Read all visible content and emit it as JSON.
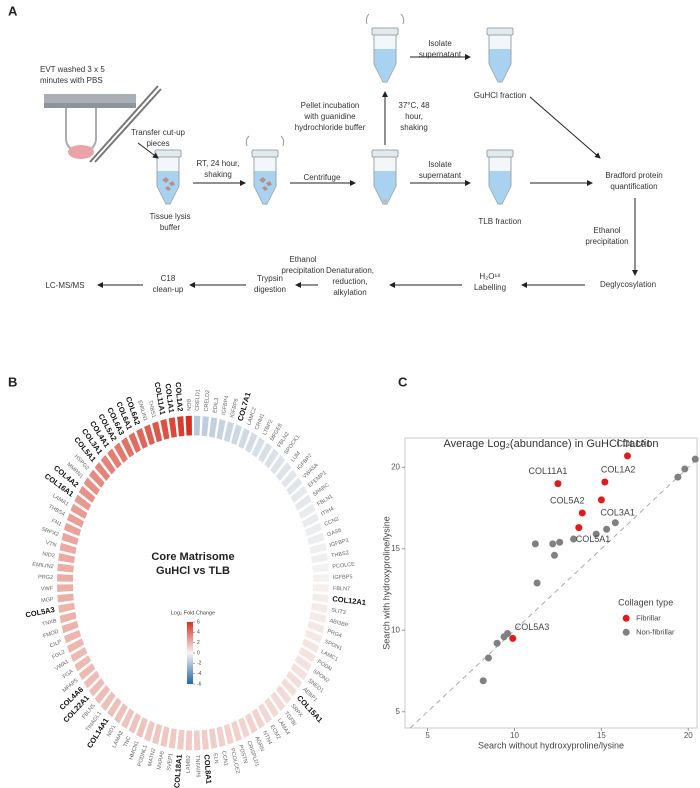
{
  "diagram": {
    "label": "A",
    "steps": [
      {
        "lines": [
          "EVT washed 3 x 5",
          "minutes with PBS"
        ]
      },
      {
        "lines": [
          "Transfer cut-up",
          "pieces"
        ]
      },
      {
        "lines": [
          "Tissue lysis",
          "buffer"
        ]
      },
      {
        "lines": [
          "RT, 24 hour,",
          "shaking"
        ]
      },
      {
        "lines": [
          "Centrifuge"
        ]
      },
      {
        "lines": [
          "Pellet incubation",
          "with guanidine",
          "hydrochloride buffer"
        ]
      },
      {
        "lines": [
          "37°C, 48",
          "hour,",
          "shaking"
        ]
      },
      {
        "lines": [
          "Isolate",
          "supernatant"
        ]
      },
      {
        "lines": [
          "GuHCl fraction"
        ]
      },
      {
        "lines": [
          "Isolate",
          "supernatant"
        ]
      },
      {
        "lines": [
          "TLB fraction"
        ]
      },
      {
        "lines": [
          "Bradford protein",
          "quantification"
        ]
      },
      {
        "lines": [
          "Ethanol",
          "precipitation"
        ]
      },
      {
        "lines": [
          "Deglycosylation"
        ]
      },
      {
        "lines": [
          "H₂O¹⁸",
          "Labelling"
        ]
      },
      {
        "lines": [
          "Denaturation,",
          "reduction,",
          "alkylation"
        ]
      },
      {
        "lines": [
          "Ethanol",
          "precipitation"
        ]
      },
      {
        "lines": [
          "Trypsin",
          "digestion"
        ]
      },
      {
        "lines": [
          "C18",
          "clean-up"
        ]
      },
      {
        "lines": [
          "LC-MS/MS"
        ]
      }
    ]
  },
  "chart_data": [
    {
      "type": "radial_bar",
      "panel": "B",
      "title": "Core Matrisome",
      "subtitle": "GuHCl vs TLB",
      "categories": [
        "CRELD1",
        "CRELD2",
        "EDIL3",
        "IGFBP4",
        "IGFBP6",
        "COL7A1",
        "LAMC2",
        "CRIM1",
        "LTBP2",
        "MFGE8",
        "FBLN2",
        "SPOCK1",
        "LUM",
        "IGFBP7",
        "VWA5A",
        "EFEMP1",
        "SPARC",
        "FBLN1",
        "ITIH4",
        "CCN2",
        "GAS6",
        "IGFBP3",
        "THBS2",
        "PCOLCE",
        "IGFBP5",
        "FBLN7",
        "COL12A1",
        "SLIT3",
        "ABI3BP",
        "PRG4",
        "SPON1",
        "LAMC1",
        "PODN",
        "SPON2",
        "SNED1",
        "AEBP1",
        "COL15A1",
        "SRPX",
        "TGFBI",
        "LAMA4",
        "ECM2",
        "NTN4",
        "AGRN",
        "CRISPLD1",
        "POSTN",
        "PCOLCE2",
        "CCN1",
        "ELN",
        "COL8A1",
        "TNFAIP6",
        "LAMB2",
        "COL18A1",
        "SVEP1",
        "MXRA5",
        "MATN2",
        "PODNL1",
        "HMCN1",
        "TNC",
        "LAMA2",
        "NID1",
        "COL14A1",
        "TINAGL1",
        "FBLN5",
        "COL22A1",
        "COL4A6",
        "MFAP5",
        "FGA",
        "VWA1",
        "FGL2",
        "CILP",
        "FMOD",
        "TNXB",
        "COL5A3",
        "MGP",
        "VWF",
        "PRG2",
        "EMILIN2",
        "NID2",
        "VTN",
        "SRPX2",
        "FN1",
        "THBS4",
        "LAMA1",
        "COL16A1",
        "COL4A2",
        "MMRN1",
        "HSPG2",
        "COL5A1",
        "COL3A1",
        "COL4A1",
        "COL5A2",
        "COL6A3",
        "COL6A1",
        "COL6A2",
        "EMILIN1",
        "THBS1",
        "COL11A1",
        "COL1A1",
        "COL1A2",
        "BGN"
      ],
      "values": [
        -1.8,
        -1.6,
        -1.5,
        -1.4,
        -1.3,
        -1.2,
        -1.1,
        -1.0,
        -0.9,
        -0.9,
        -0.8,
        -0.7,
        -0.7,
        -0.6,
        -0.6,
        -0.5,
        -0.5,
        -0.4,
        -0.4,
        -0.3,
        -0.3,
        -0.2,
        -0.2,
        -0.1,
        -0.1,
        0.1,
        0.2,
        0.3,
        0.3,
        0.4,
        0.4,
        0.5,
        0.5,
        0.6,
        0.6,
        0.7,
        0.7,
        0.8,
        0.8,
        0.9,
        0.9,
        1.0,
        1.0,
        1.0,
        1.1,
        1.1,
        1.1,
        1.2,
        1.2,
        1.2,
        1.3,
        1.3,
        1.3,
        1.4,
        1.4,
        1.4,
        1.5,
        1.5,
        1.5,
        1.6,
        1.6,
        1.6,
        1.7,
        1.7,
        1.7,
        1.8,
        1.8,
        1.8,
        1.9,
        1.9,
        2.0,
        2.0,
        2.0,
        2.1,
        2.1,
        2.2,
        2.2,
        2.3,
        2.3,
        2.4,
        2.5,
        2.6,
        2.7,
        2.8,
        3.0,
        3.1,
        3.2,
        3.4,
        3.5,
        3.6,
        3.8,
        4.0,
        4.2,
        4.4,
        4.6,
        4.8,
        5.0,
        5.3,
        5.6,
        6.0
      ],
      "colorbar": {
        "title": "Log₂ Fold Change",
        "lim": [
          -6,
          6
        ],
        "ticks": [
          6,
          4,
          2,
          0,
          -2,
          -4,
          -6
        ],
        "colors": [
          "#2166ac",
          "#f7f4f2",
          "#d7301f"
        ]
      }
    },
    {
      "type": "scatter",
      "panel": "C",
      "title": "Average Log₂(abundance) in GuHCl fraction",
      "xlabel": "Search without hydroxyproline/lysine",
      "ylabel": "Search with hydroxyproline/lysine",
      "xlim": [
        3.7,
        20.5
      ],
      "ylim": [
        4,
        21.8
      ],
      "xticks": [
        5,
        10,
        15,
        20
      ],
      "yticks": [
        5,
        10,
        15,
        20
      ],
      "grid": false,
      "diagonal": true,
      "legend_title": "Collagen type",
      "legend_position": "center right",
      "series": [
        {
          "name": "Fibrillar",
          "color": "#e31a1c",
          "labels": [
            "COL1A1",
            "COL1A2",
            "COL11A1",
            "COL3A1",
            "COL5A2",
            "COL5A1",
            "COL5A3"
          ],
          "x": [
            16.5,
            15.2,
            12.5,
            15.0,
            13.9,
            13.7,
            9.9
          ],
          "values": [
            20.7,
            19.1,
            19.0,
            18.0,
            17.2,
            16.3,
            9.5
          ]
        },
        {
          "name": "Non-fibrillar",
          "color": "#808080",
          "x": [
            20.4,
            19.8,
            19.4,
            15.8,
            15.3,
            14.7,
            13.4,
            12.6,
            12.2,
            11.2,
            12.3,
            11.3,
            9.4,
            9.6,
            9.0,
            8.5,
            8.2
          ],
          "values": [
            20.5,
            19.9,
            19.4,
            16.6,
            16.2,
            15.9,
            15.6,
            15.4,
            15.3,
            15.3,
            14.6,
            12.9,
            9.6,
            9.8,
            9.2,
            8.3,
            6.9
          ]
        }
      ]
    }
  ]
}
